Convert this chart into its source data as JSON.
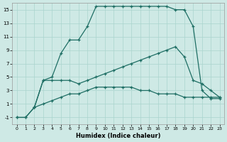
{
  "xlabel": "Humidex (Indice chaleur)",
  "xlim": [
    0,
    23
  ],
  "ylim": [
    -2,
    16
  ],
  "xticks": [
    0,
    1,
    2,
    3,
    4,
    5,
    6,
    7,
    8,
    9,
    10,
    11,
    12,
    13,
    14,
    15,
    16,
    17,
    18,
    19,
    20,
    21,
    22,
    23
  ],
  "yticks": [
    -1,
    1,
    3,
    5,
    7,
    9,
    11,
    13,
    15
  ],
  "background_color": "#cee9e5",
  "grid_color": "#aad4ce",
  "line_color": "#1e6e64",
  "line1_x": [
    2,
    3,
    4,
    5,
    6,
    7,
    8,
    9,
    10,
    11,
    12,
    13,
    14,
    15,
    16,
    17,
    18,
    19,
    20,
    21,
    22,
    23
  ],
  "line1_y": [
    0.5,
    4.5,
    5.0,
    8.5,
    10.5,
    10.5,
    12.5,
    15.5,
    15.5,
    15.5,
    15.5,
    15.5,
    15.5,
    15.5,
    15.5,
    15.5,
    15.0,
    15.0,
    12.5,
    3.0,
    1.8,
    1.8
  ],
  "line2_x": [
    0,
    1,
    2,
    3,
    4,
    5,
    6,
    7,
    8,
    9,
    10,
    11,
    12,
    13,
    14,
    15,
    16,
    17,
    18,
    19,
    20,
    21,
    22,
    23
  ],
  "line2_y": [
    -1,
    -1,
    0.5,
    4.5,
    4.5,
    4.5,
    4.5,
    4.0,
    4.5,
    5.0,
    5.5,
    6.0,
    6.5,
    7.0,
    7.5,
    8.0,
    8.5,
    9.0,
    9.5,
    8.0,
    4.5,
    4.0,
    3.0,
    2.0
  ],
  "line3_x": [
    0,
    1,
    2,
    3,
    4,
    5,
    6,
    7,
    8,
    9,
    10,
    11,
    12,
    13,
    14,
    15,
    16,
    17,
    18,
    19,
    20,
    21,
    22,
    23
  ],
  "line3_y": [
    -1,
    -1,
    0.5,
    1.0,
    1.5,
    2.0,
    2.5,
    2.5,
    3.0,
    3.5,
    3.5,
    3.5,
    3.5,
    3.5,
    3.0,
    3.0,
    2.5,
    2.5,
    2.5,
    2.0,
    2.0,
    2.0,
    2.0,
    2.0
  ]
}
